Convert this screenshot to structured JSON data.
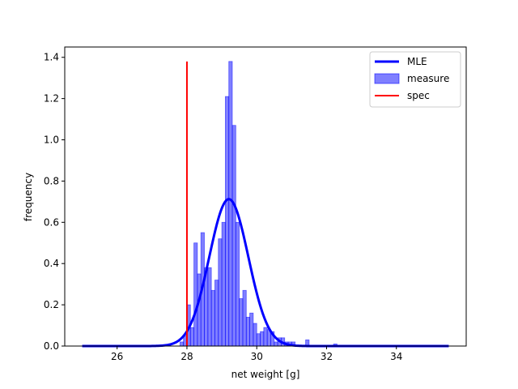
{
  "chart_data": {
    "type": "bar",
    "title": "",
    "xlabel": "net weight [g]",
    "ylabel": "frequency",
    "xlim": [
      24.5,
      36.0
    ],
    "ylim": [
      0,
      1.45
    ],
    "xticks": [
      26,
      28,
      30,
      32,
      34
    ],
    "yticks": [
      0.0,
      0.2,
      0.4,
      0.6,
      0.8,
      1.0,
      1.2,
      1.4
    ],
    "grid": false,
    "legend_position": "top-right",
    "legend": [
      "MLE",
      "measure",
      "spec"
    ],
    "histogram": {
      "name": "measure",
      "color": "#0000ff",
      "bin_width": 0.1,
      "bin_starts": [
        27.8,
        27.9,
        28.0,
        28.1,
        28.2,
        28.3,
        28.4,
        28.5,
        28.6,
        28.7,
        28.8,
        28.9,
        29.0,
        29.1,
        29.2,
        29.3,
        29.4,
        29.5,
        29.6,
        29.7,
        29.8,
        29.9,
        30.0,
        30.1,
        30.2,
        30.3,
        30.4,
        30.5,
        30.6,
        30.7,
        30.8,
        30.9,
        31.0,
        31.4,
        32.2
      ],
      "values": [
        0.02,
        0.05,
        0.2,
        0.09,
        0.5,
        0.35,
        0.55,
        0.38,
        0.38,
        0.27,
        0.32,
        0.52,
        0.6,
        1.21,
        1.38,
        1.07,
        0.6,
        0.23,
        0.27,
        0.14,
        0.16,
        0.11,
        0.06,
        0.07,
        0.09,
        0.08,
        0.07,
        0.02,
        0.04,
        0.04,
        0.02,
        0.02,
        0.02,
        0.03,
        0.01
      ]
    },
    "mle_curve": {
      "name": "MLE",
      "color": "#0000ff",
      "mean": 29.2,
      "std": 0.56,
      "x_range": [
        25.0,
        35.5
      ]
    },
    "spec_line": {
      "name": "spec",
      "color": "#ff0000",
      "x": 28.0,
      "y_range": [
        0,
        1.38
      ]
    }
  }
}
